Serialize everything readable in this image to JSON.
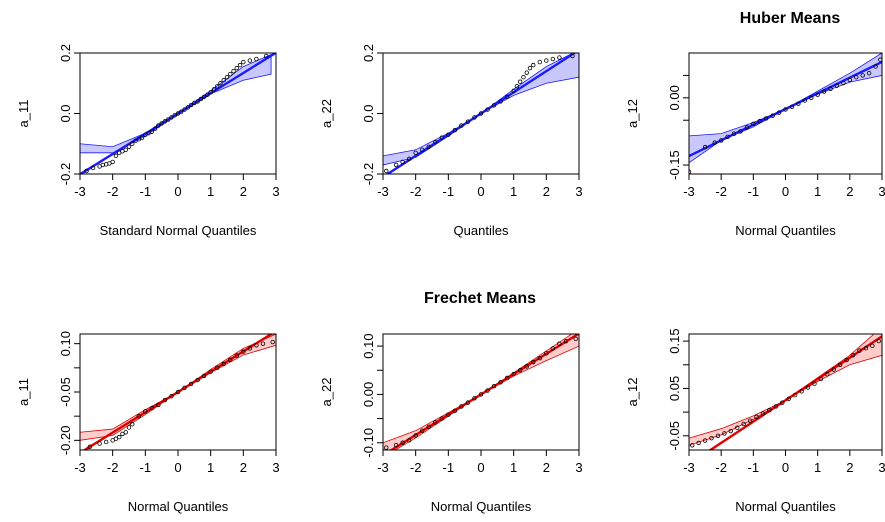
{
  "titles": {
    "top": "Huber Means",
    "bottom": "Frechet Means"
  },
  "colors": {
    "huber_line": "#1a1aff",
    "huber_band_fill": "#c8c8ff",
    "frechet_line": "#e00000",
    "frechet_band_fill": "#ffcccc",
    "points": "#000000"
  },
  "chart_data": [
    {
      "type": "scatter",
      "xlabel": "Standard Normal Quantiles",
      "ylabel": "a_11",
      "xlim": [
        -3,
        3
      ],
      "ylim": [
        -0.2,
        0.2
      ],
      "xticks": [
        "-3",
        "-2",
        "-1",
        "0",
        "1",
        "2",
        "3"
      ],
      "yticks": [
        "-0.2",
        "0.0",
        "0.2"
      ],
      "ytick_values": [
        -0.2,
        0.0,
        0.2
      ],
      "color": "huber",
      "line": {
        "intercept": 0.0,
        "slope": 0.067
      },
      "band": {
        "x": [
          -3,
          -2,
          -1,
          0,
          1,
          2,
          2.85
        ],
        "lower": [
          -0.13,
          -0.13,
          -0.075,
          0.0,
          0.065,
          0.11,
          0.13
        ],
        "upper": [
          -0.1,
          -0.11,
          -0.065,
          0.0,
          0.075,
          0.155,
          0.195
        ]
      },
      "points": {
        "x": [
          -2.8,
          -2.6,
          -2.4,
          -2.3,
          -2.2,
          -2.1,
          -2.0,
          -1.9,
          -1.8,
          -1.7,
          -1.6,
          -1.5,
          -1.4,
          -1.3,
          -1.2,
          -1.1,
          -1.0,
          -0.9,
          -0.8,
          -0.7,
          -0.6,
          -0.5,
          -0.4,
          -0.3,
          -0.2,
          -0.1,
          0.0,
          0.1,
          0.2,
          0.3,
          0.4,
          0.5,
          0.6,
          0.7,
          0.8,
          0.9,
          1.0,
          1.1,
          1.2,
          1.3,
          1.4,
          1.5,
          1.6,
          1.7,
          1.8,
          1.9,
          2.0,
          2.2,
          2.4,
          2.7
        ],
        "y": [
          -0.19,
          -0.18,
          -0.175,
          -0.17,
          -0.168,
          -0.165,
          -0.16,
          -0.14,
          -0.13,
          -0.125,
          -0.12,
          -0.11,
          -0.1,
          -0.09,
          -0.085,
          -0.08,
          -0.07,
          -0.065,
          -0.06,
          -0.05,
          -0.04,
          -0.033,
          -0.026,
          -0.02,
          -0.013,
          -0.006,
          0.0,
          0.006,
          0.013,
          0.02,
          0.028,
          0.035,
          0.04,
          0.048,
          0.055,
          0.062,
          0.07,
          0.08,
          0.09,
          0.1,
          0.11,
          0.12,
          0.13,
          0.14,
          0.15,
          0.16,
          0.17,
          0.175,
          0.18,
          0.19
        ]
      }
    },
    {
      "type": "scatter",
      "xlabel": "Quantiles",
      "ylabel": "a_22",
      "xlim": [
        -3,
        3
      ],
      "ylim": [
        -0.2,
        0.2
      ],
      "xticks": [
        "-3",
        "-2",
        "-1",
        "0",
        "1",
        "2",
        "3"
      ],
      "yticks": [
        "-0.2",
        "0.0",
        "0.2"
      ],
      "ytick_values": [
        -0.2,
        0.0,
        0.2
      ],
      "color": "huber",
      "line": {
        "intercept": 0.0,
        "slope": 0.07
      },
      "band": {
        "x": [
          -3,
          -2,
          -1,
          0,
          1,
          2,
          3
        ],
        "lower": [
          -0.17,
          -0.145,
          -0.075,
          0.0,
          0.06,
          0.1,
          0.12
        ],
        "upper": [
          -0.14,
          -0.12,
          -0.065,
          0.0,
          0.08,
          0.155,
          0.21
        ]
      },
      "points": {
        "x": [
          -2.9,
          -2.6,
          -2.4,
          -2.2,
          -2.0,
          -1.8,
          -1.6,
          -1.4,
          -1.2,
          -1.0,
          -0.8,
          -0.6,
          -0.4,
          -0.2,
          0.0,
          0.2,
          0.4,
          0.6,
          0.8,
          1.0,
          1.1,
          1.2,
          1.3,
          1.4,
          1.5,
          1.6,
          1.8,
          2.0,
          2.2,
          2.4,
          2.8
        ],
        "y": [
          -0.19,
          -0.17,
          -0.16,
          -0.15,
          -0.13,
          -0.12,
          -0.11,
          -0.095,
          -0.08,
          -0.07,
          -0.055,
          -0.04,
          -0.027,
          -0.013,
          0.0,
          0.013,
          0.027,
          0.04,
          0.055,
          0.075,
          0.09,
          0.105,
          0.12,
          0.135,
          0.15,
          0.16,
          0.17,
          0.175,
          0.18,
          0.185,
          0.19
        ]
      }
    },
    {
      "type": "scatter",
      "xlabel": "Normal Quantiles",
      "ylabel": "a_12",
      "xlim": [
        -3,
        3
      ],
      "ylim": [
        -0.17,
        0.1
      ],
      "xticks": [
        "-3",
        "-2",
        "-1",
        "0",
        "1",
        "2",
        "3"
      ],
      "yticks": [
        "-0.15",
        "0.00"
      ],
      "ytick_values": [
        -0.15,
        0.0
      ],
      "extra_yticks": [
        -0.05,
        0.05
      ],
      "color": "huber",
      "line": {
        "intercept": -0.025,
        "slope": 0.035
      },
      "band": {
        "x": [
          -3,
          -2,
          -1,
          0,
          1,
          2,
          3
        ],
        "lower": [
          -0.145,
          -0.095,
          -0.065,
          -0.025,
          0.008,
          0.035,
          0.05
        ],
        "upper": [
          -0.085,
          -0.08,
          -0.055,
          -0.025,
          0.015,
          0.055,
          0.1
        ]
      },
      "points": {
        "x": [
          -3.0,
          -2.5,
          -2.2,
          -2.0,
          -1.8,
          -1.6,
          -1.4,
          -1.2,
          -1.0,
          -0.8,
          -0.6,
          -0.4,
          -0.2,
          0.0,
          0.2,
          0.4,
          0.6,
          0.8,
          1.0,
          1.2,
          1.4,
          1.6,
          1.8,
          2.0,
          2.2,
          2.4,
          2.6,
          2.8,
          2.95
        ],
        "y": [
          -0.165,
          -0.11,
          -0.1,
          -0.095,
          -0.087,
          -0.08,
          -0.075,
          -0.066,
          -0.058,
          -0.052,
          -0.046,
          -0.04,
          -0.033,
          -0.026,
          -0.02,
          -0.013,
          -0.006,
          0.0,
          0.007,
          0.014,
          0.02,
          0.027,
          0.033,
          0.04,
          0.046,
          0.05,
          0.055,
          0.07,
          0.085
        ]
      }
    },
    {
      "type": "scatter",
      "xlabel": "Normal Quantiles",
      "ylabel": "a_11",
      "xlim": [
        -3,
        3
      ],
      "ylim": [
        -0.23,
        0.13
      ],
      "xticks": [
        "-3",
        "-2",
        "-1",
        "0",
        "1",
        "2",
        "3"
      ],
      "yticks": [
        "-0.20",
        "-0.05",
        "0.10"
      ],
      "ytick_values": [
        -0.2,
        -0.05,
        0.1
      ],
      "extra_yticks": [
        -0.125,
        0.025
      ],
      "color": "frechet",
      "line": {
        "intercept": -0.05,
        "slope": 0.063
      },
      "band": {
        "x": [
          -3,
          -2,
          -1,
          0,
          1,
          2,
          3
        ],
        "lower": [
          -0.2,
          -0.185,
          -0.12,
          -0.05,
          0.01,
          0.065,
          0.095
        ],
        "upper": [
          -0.175,
          -0.165,
          -0.105,
          -0.05,
          0.02,
          0.085,
          0.13
        ]
      },
      "points": {
        "x": [
          -2.7,
          -2.4,
          -2.2,
          -2.0,
          -1.9,
          -1.8,
          -1.7,
          -1.6,
          -1.5,
          -1.4,
          -1.2,
          -1.0,
          -0.8,
          -0.6,
          -0.4,
          -0.2,
          0.0,
          0.2,
          0.4,
          0.6,
          0.8,
          1.0,
          1.2,
          1.4,
          1.6,
          1.8,
          2.0,
          2.2,
          2.4,
          2.6,
          2.9
        ],
        "y": [
          -0.22,
          -0.21,
          -0.205,
          -0.2,
          -0.195,
          -0.19,
          -0.18,
          -0.175,
          -0.16,
          -0.15,
          -0.125,
          -0.11,
          -0.1,
          -0.09,
          -0.075,
          -0.063,
          -0.05,
          -0.037,
          -0.025,
          -0.013,
          0.0,
          0.013,
          0.025,
          0.037,
          0.05,
          0.063,
          0.075,
          0.085,
          0.095,
          0.1,
          0.105
        ]
      }
    },
    {
      "type": "scatter",
      "xlabel": "Normal Quantiles",
      "ylabel": "a_22",
      "xlim": [
        -3,
        3
      ],
      "ylim": [
        -0.115,
        0.125
      ],
      "xticks": [
        "-3",
        "-2",
        "-1",
        "0",
        "1",
        "2",
        "3"
      ],
      "yticks": [
        "-0.10",
        "0.00",
        "0.10"
      ],
      "ytick_values": [
        -0.1,
        0.0,
        0.1
      ],
      "extra_yticks": [
        -0.05,
        0.05
      ],
      "color": "frechet",
      "line": {
        "intercept": 0.0,
        "slope": 0.042
      },
      "band": {
        "x": [
          -3,
          -2,
          -1,
          0,
          1,
          2,
          3
        ],
        "lower": [
          -0.13,
          -0.09,
          -0.045,
          0.0,
          0.038,
          0.07,
          0.1
        ],
        "upper": [
          -0.1,
          -0.075,
          -0.038,
          0.0,
          0.045,
          0.09,
          0.135
        ]
      },
      "points": {
        "x": [
          -2.9,
          -2.6,
          -2.4,
          -2.2,
          -2.0,
          -1.8,
          -1.6,
          -1.4,
          -1.2,
          -1.0,
          -0.8,
          -0.6,
          -0.4,
          -0.2,
          0.0,
          0.2,
          0.4,
          0.6,
          0.8,
          1.0,
          1.2,
          1.4,
          1.6,
          1.8,
          2.0,
          2.2,
          2.4,
          2.6,
          2.9
        ],
        "y": [
          -0.11,
          -0.105,
          -0.1,
          -0.095,
          -0.085,
          -0.075,
          -0.067,
          -0.058,
          -0.05,
          -0.042,
          -0.034,
          -0.025,
          -0.017,
          -0.008,
          0.0,
          0.008,
          0.017,
          0.025,
          0.034,
          0.042,
          0.05,
          0.058,
          0.067,
          0.075,
          0.085,
          0.095,
          0.105,
          0.11,
          0.115
        ]
      }
    },
    {
      "type": "scatter",
      "xlabel": "Normal Quantiles",
      "ylabel": "a_12",
      "xlim": [
        -3,
        3
      ],
      "ylim": [
        -0.08,
        0.165
      ],
      "xticks": [
        "-3",
        "-2",
        "-1",
        "0",
        "1",
        "2",
        "3"
      ],
      "yticks": [
        "-0.05",
        "0.05",
        "0.15"
      ],
      "ytick_values": [
        -0.05,
        0.05,
        0.15
      ],
      "extra_yticks": [
        0.0,
        0.1
      ],
      "color": "frechet",
      "line": {
        "intercept": 0.025,
        "slope": 0.045
      },
      "band": {
        "x": [
          -3,
          -2,
          -1,
          0,
          1,
          2,
          3
        ],
        "lower": [
          -0.07,
          -0.048,
          -0.015,
          0.025,
          0.065,
          0.1,
          0.12
        ],
        "upper": [
          -0.055,
          -0.035,
          -0.008,
          0.025,
          0.073,
          0.12,
          0.18
        ]
      },
      "points": {
        "x": [
          -2.9,
          -2.7,
          -2.5,
          -2.3,
          -2.1,
          -1.9,
          -1.7,
          -1.5,
          -1.3,
          -1.1,
          -0.9,
          -0.7,
          -0.5,
          -0.3,
          -0.1,
          0.1,
          0.3,
          0.5,
          0.7,
          0.9,
          1.1,
          1.3,
          1.5,
          1.7,
          1.9,
          2.1,
          2.3,
          2.5,
          2.7,
          2.9
        ],
        "y": [
          -0.07,
          -0.065,
          -0.06,
          -0.055,
          -0.05,
          -0.045,
          -0.04,
          -0.033,
          -0.025,
          -0.018,
          -0.01,
          -0.003,
          0.004,
          0.012,
          0.02,
          0.028,
          0.036,
          0.044,
          0.052,
          0.06,
          0.07,
          0.08,
          0.09,
          0.1,
          0.11,
          0.12,
          0.13,
          0.135,
          0.14,
          0.15
        ]
      }
    }
  ]
}
